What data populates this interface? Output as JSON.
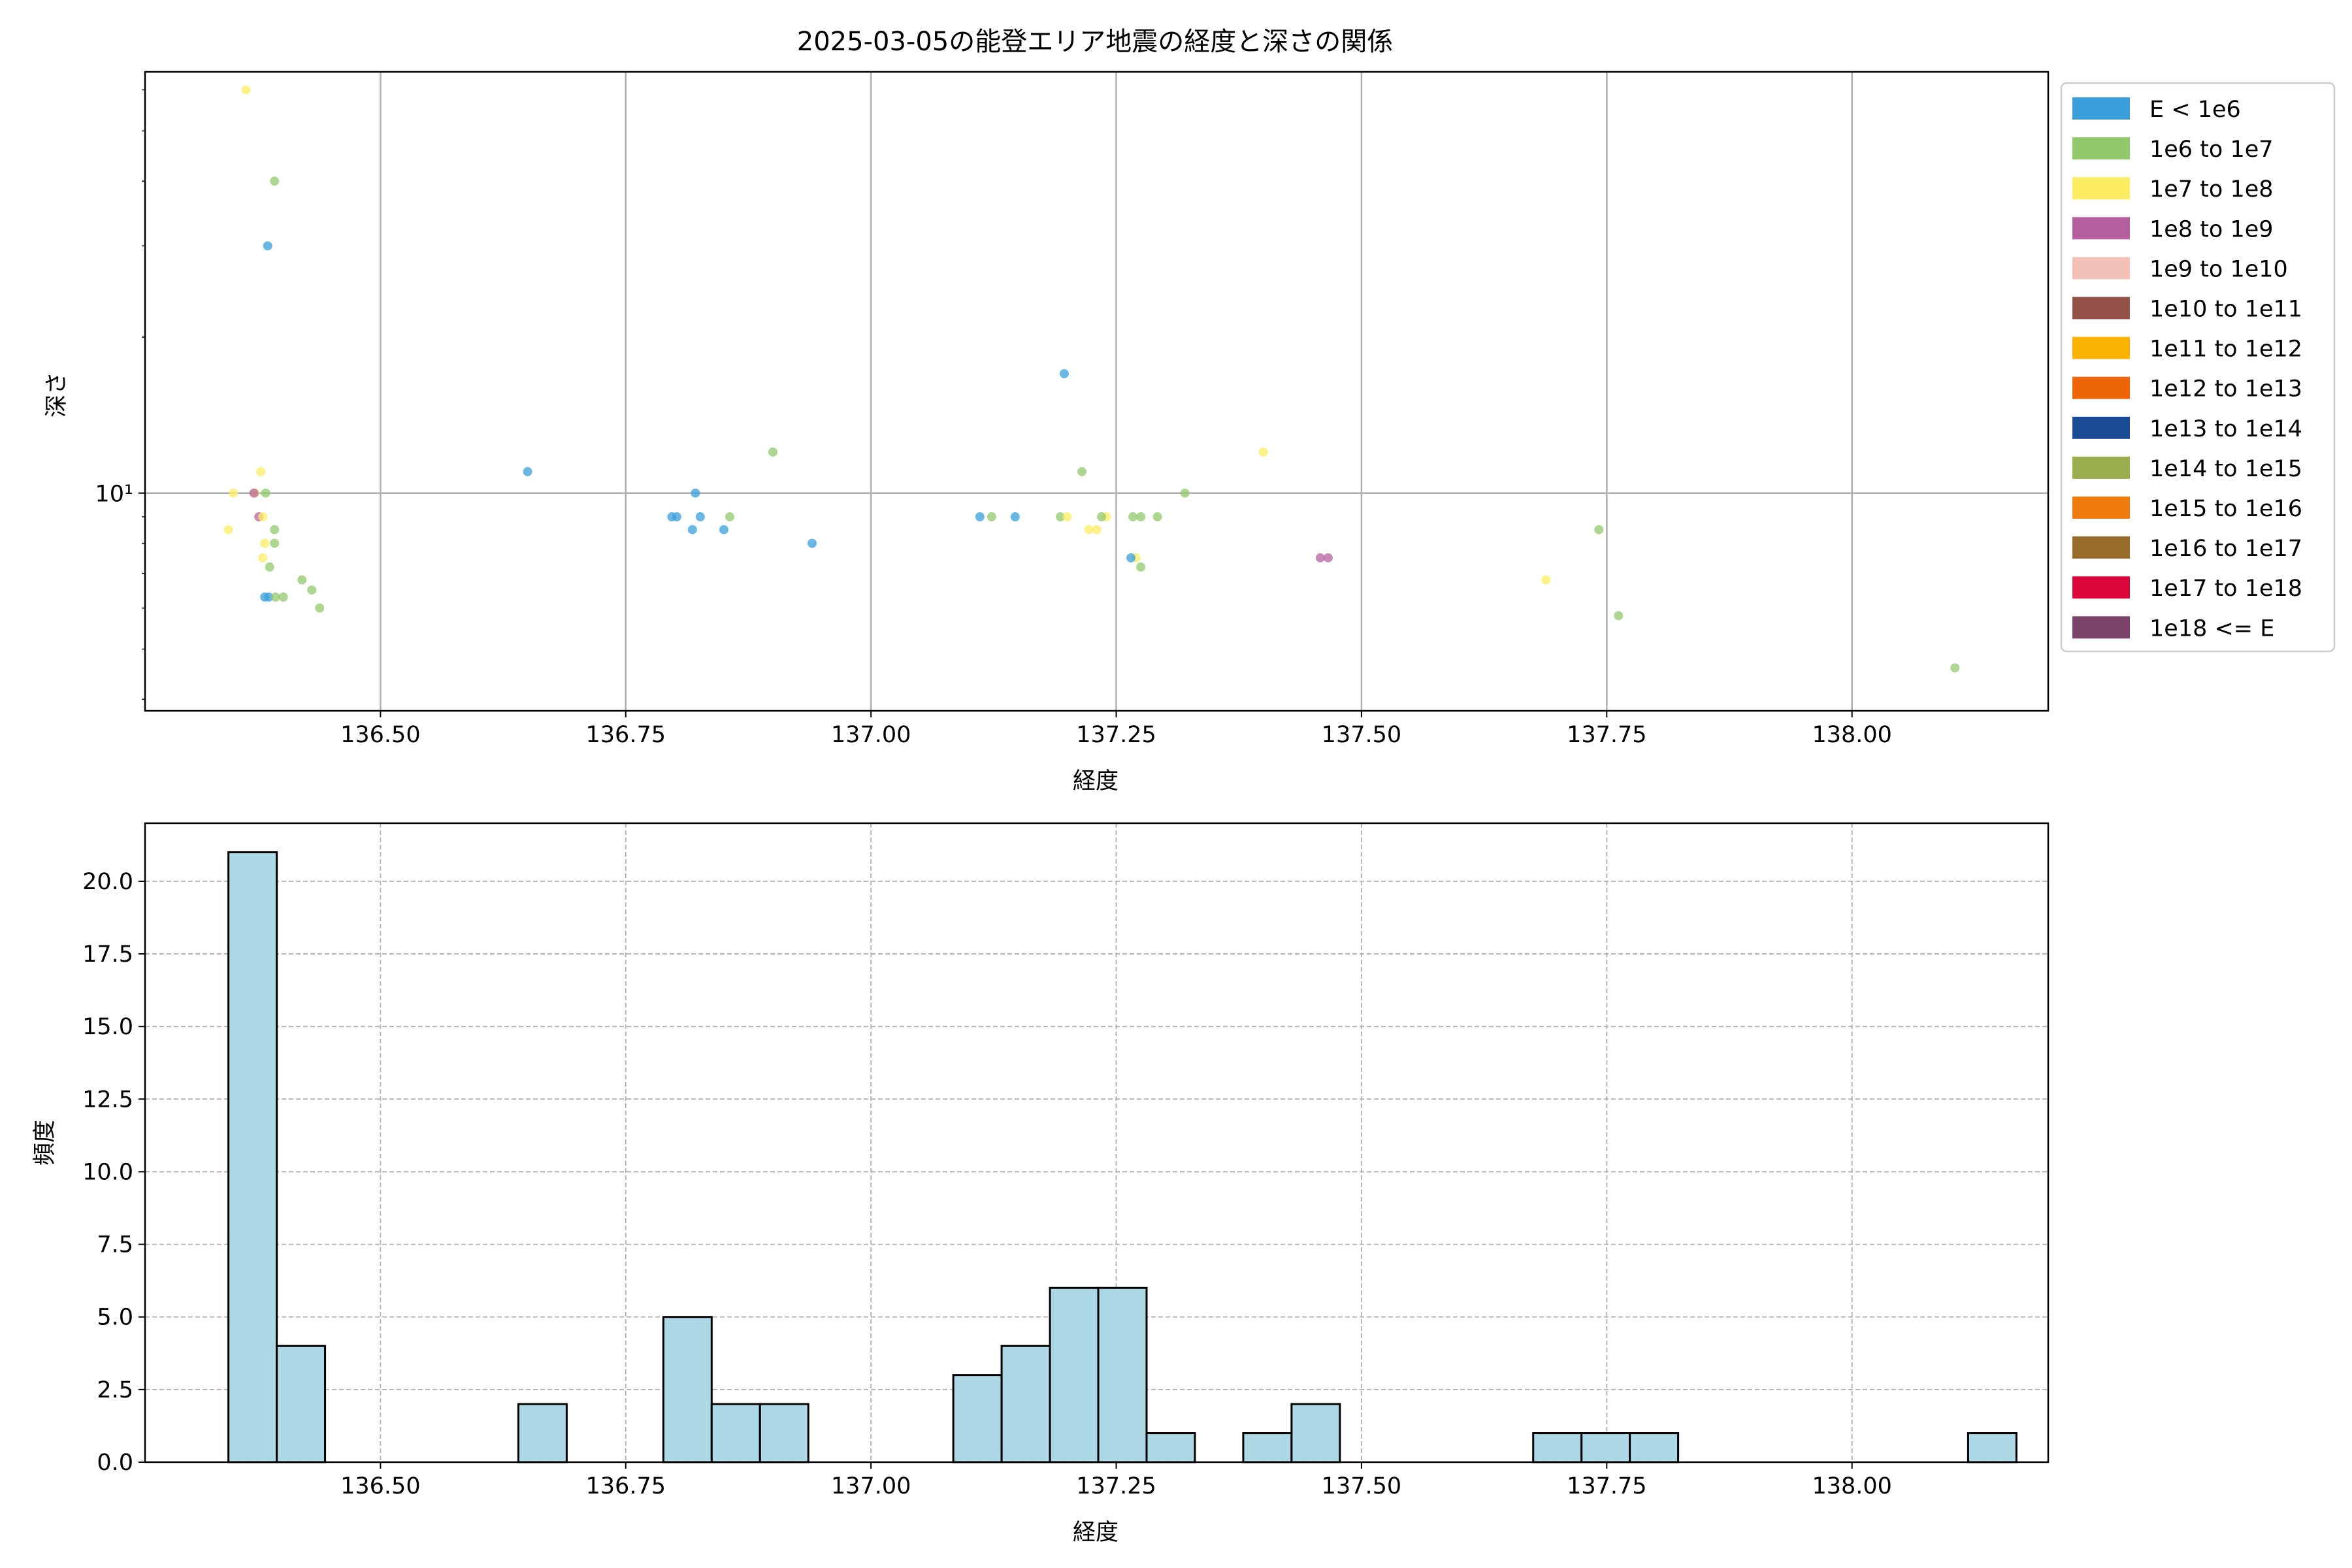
{
  "chart_data": [
    {
      "type": "scatter",
      "title": "2025-03-05の能登エリア地震の経度と深さの関係",
      "xlabel": "経度",
      "ylabel": "深さ",
      "xlim": [
        136.26,
        138.2
      ],
      "ylim": [
        3.8,
        65
      ],
      "yscale": "log",
      "grid": true,
      "xticks": [
        136.5,
        136.75,
        137.0,
        137.25,
        137.5,
        137.75,
        138.0
      ],
      "xtick_labels": [
        "136.50",
        "136.75",
        "137.00",
        "137.25",
        "137.50",
        "137.75",
        "138.00"
      ],
      "ytick_major": [
        10
      ],
      "ytick_labels": [
        "10¹"
      ],
      "ytick_minor": [
        4,
        5,
        6,
        7,
        8,
        9,
        20,
        30,
        40,
        50,
        60
      ],
      "legend_position": "outside-right",
      "legend": [
        {
          "label": "E < 1e6",
          "color": "#3a9fda"
        },
        {
          "label": "1e6 to 1e7",
          "color": "#92c86b"
        },
        {
          "label": "1e7 to 1e8",
          "color": "#fced63"
        },
        {
          "label": "1e8 to 1e9",
          "color": "#b561a0"
        },
        {
          "label": "1e9 to 1e10",
          "color": "#f3c0b8"
        },
        {
          "label": "1e10 to 1e11",
          "color": "#955048"
        },
        {
          "label": "1e11 to 1e12",
          "color": "#f8b305"
        },
        {
          "label": "1e12 to 1e13",
          "color": "#ed6508"
        },
        {
          "label": "1e13 to 1e14",
          "color": "#1b4b94"
        },
        {
          "label": "1e14 to 1e15",
          "color": "#9aad4e"
        },
        {
          "label": "1e15 to 1e16",
          "color": "#ee7b0c"
        },
        {
          "label": "1e16 to 1e17",
          "color": "#976d29"
        },
        {
          "label": "1e17 to 1e18",
          "color": "#da053a"
        },
        {
          "label": "1e18 <= E",
          "color": "#7a4169"
        }
      ],
      "points": [
        {
          "x": 136.363,
          "y": 60,
          "c": 2
        },
        {
          "x": 136.392,
          "y": 40,
          "c": 1
        },
        {
          "x": 136.385,
          "y": 30,
          "c": 0
        },
        {
          "x": 136.378,
          "y": 11,
          "c": 2
        },
        {
          "x": 136.35,
          "y": 10,
          "c": 2
        },
        {
          "x": 136.372,
          "y": 10,
          "c": 2
        },
        {
          "x": 136.371,
          "y": 10,
          "c": 3
        },
        {
          "x": 136.383,
          "y": 10,
          "c": 1
        },
        {
          "x": 136.376,
          "y": 9,
          "c": 3
        },
        {
          "x": 136.38,
          "y": 9,
          "c": 2
        },
        {
          "x": 136.345,
          "y": 8.5,
          "c": 2
        },
        {
          "x": 136.392,
          "y": 8.5,
          "c": 1
        },
        {
          "x": 136.382,
          "y": 8,
          "c": 2
        },
        {
          "x": 136.392,
          "y": 8,
          "c": 1
        },
        {
          "x": 136.38,
          "y": 7.5,
          "c": 2
        },
        {
          "x": 136.387,
          "y": 7.2,
          "c": 1
        },
        {
          "x": 136.42,
          "y": 6.8,
          "c": 1
        },
        {
          "x": 136.43,
          "y": 6.5,
          "c": 1
        },
        {
          "x": 136.382,
          "y": 6.3,
          "c": 0
        },
        {
          "x": 136.386,
          "y": 6.3,
          "c": 0
        },
        {
          "x": 136.393,
          "y": 6.3,
          "c": 1
        },
        {
          "x": 136.401,
          "y": 6.3,
          "c": 1
        },
        {
          "x": 136.438,
          "y": 6,
          "c": 1
        },
        {
          "x": 136.65,
          "y": 11,
          "c": 0
        },
        {
          "x": 136.797,
          "y": 9,
          "c": 0
        },
        {
          "x": 136.802,
          "y": 9,
          "c": 0
        },
        {
          "x": 136.821,
          "y": 10,
          "c": 0
        },
        {
          "x": 136.826,
          "y": 9,
          "c": 0
        },
        {
          "x": 136.818,
          "y": 8.5,
          "c": 0
        },
        {
          "x": 136.85,
          "y": 8.5,
          "c": 0
        },
        {
          "x": 136.856,
          "y": 9,
          "c": 1
        },
        {
          "x": 136.9,
          "y": 12,
          "c": 1
        },
        {
          "x": 136.94,
          "y": 8,
          "c": 0
        },
        {
          "x": 137.111,
          "y": 9,
          "c": 0
        },
        {
          "x": 137.123,
          "y": 9,
          "c": 1
        },
        {
          "x": 137.147,
          "y": 9,
          "c": 0
        },
        {
          "x": 137.193,
          "y": 9,
          "c": 1
        },
        {
          "x": 137.2,
          "y": 9,
          "c": 2
        },
        {
          "x": 137.197,
          "y": 17,
          "c": 0
        },
        {
          "x": 137.215,
          "y": 11,
          "c": 1
        },
        {
          "x": 137.222,
          "y": 8.5,
          "c": 2
        },
        {
          "x": 137.23,
          "y": 8.5,
          "c": 2
        },
        {
          "x": 137.24,
          "y": 9,
          "c": 2
        },
        {
          "x": 137.235,
          "y": 9,
          "c": 1
        },
        {
          "x": 137.267,
          "y": 9,
          "c": 1
        },
        {
          "x": 137.275,
          "y": 9,
          "c": 1
        },
        {
          "x": 137.27,
          "y": 7.5,
          "c": 2
        },
        {
          "x": 137.265,
          "y": 7.5,
          "c": 0
        },
        {
          "x": 137.275,
          "y": 7.2,
          "c": 1
        },
        {
          "x": 137.292,
          "y": 9,
          "c": 1
        },
        {
          "x": 137.32,
          "y": 10,
          "c": 1
        },
        {
          "x": 137.4,
          "y": 12,
          "c": 2
        },
        {
          "x": 137.458,
          "y": 7.5,
          "c": 3
        },
        {
          "x": 137.466,
          "y": 7.5,
          "c": 3
        },
        {
          "x": 137.688,
          "y": 6.8,
          "c": 2
        },
        {
          "x": 137.742,
          "y": 8.5,
          "c": 1
        },
        {
          "x": 137.762,
          "y": 5.8,
          "c": 1
        },
        {
          "x": 138.105,
          "y": 4.6,
          "c": 1
        }
      ]
    },
    {
      "type": "bar",
      "subtype": "histogram",
      "title": "",
      "xlabel": "経度",
      "ylabel": "頻度",
      "xlim": [
        136.26,
        138.2
      ],
      "ylim": [
        0,
        22
      ],
      "grid": true,
      "bar_color": "#add8e6",
      "edge_color": "#000000",
      "xticks": [
        136.5,
        136.75,
        137.0,
        137.25,
        137.5,
        137.75,
        138.0
      ],
      "xtick_labels": [
        "136.50",
        "136.75",
        "137.00",
        "137.25",
        "137.50",
        "137.75",
        "138.00"
      ],
      "yticks": [
        0,
        2.5,
        5,
        7.5,
        10,
        12.5,
        15,
        17.5,
        20
      ],
      "ytick_labels": [
        "0.0",
        "2.5",
        "5.0",
        "7.5",
        "10.0",
        "12.5",
        "15.0",
        "17.5",
        "20.0"
      ],
      "bin_start": 136.345,
      "bin_width": 0.04926,
      "counts": [
        21,
        4,
        0,
        0,
        0,
        0,
        2,
        0,
        0,
        5,
        2,
        2,
        0,
        0,
        0,
        3,
        4,
        6,
        6,
        1,
        0,
        1,
        2,
        0,
        0,
        0,
        0,
        1,
        1,
        1,
        0,
        0,
        0,
        0,
        0,
        0,
        1
      ]
    }
  ]
}
